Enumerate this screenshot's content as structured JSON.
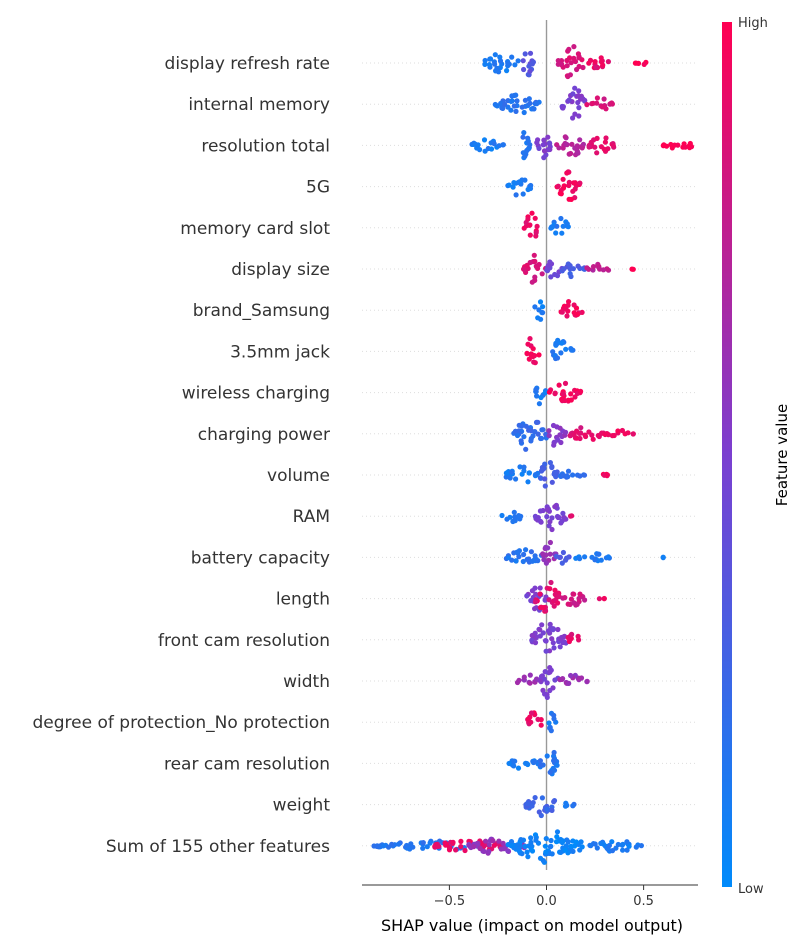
{
  "chart_data": {
    "type": "scatter",
    "subtype": "shap-beeswarm",
    "xlabel": "SHAP value (impact on model output)",
    "xlim": [
      -0.95,
      0.78
    ],
    "x_ticks": [
      {
        "value": -0.5,
        "label": "−0.5"
      },
      {
        "value": 0.0,
        "label": "0.0"
      },
      {
        "value": 0.5,
        "label": "0.5"
      }
    ],
    "zero_line": true,
    "colorbar": {
      "title": "Feature value",
      "high_label": "High",
      "low_label": "Low",
      "high_color": "#ff0052",
      "mid_color": "#7b3fd0",
      "low_color": "#008bfb"
    },
    "features": [
      {
        "name": "display refresh rate",
        "segments": [
          [
            -0.32,
            -0.14,
            0.1,
            0.6
          ],
          [
            -0.14,
            -0.06,
            0.35,
            0.9
          ],
          [
            0.06,
            0.2,
            0.85,
            1.0
          ],
          [
            0.2,
            0.32,
            0.9,
            0.4
          ],
          [
            0.45,
            0.52,
            1.0,
            0.15
          ]
        ]
      },
      {
        "name": "internal memory",
        "segments": [
          [
            -0.27,
            -0.02,
            0.15,
            0.6
          ],
          [
            0.08,
            0.2,
            0.5,
            1.0
          ],
          [
            0.2,
            0.34,
            0.85,
            0.4
          ]
        ]
      },
      {
        "name": "resolution total",
        "segments": [
          [
            -0.4,
            -0.22,
            0.1,
            0.35
          ],
          [
            -0.17,
            -0.08,
            0.15,
            0.8
          ],
          [
            -0.06,
            0.02,
            0.5,
            1.0
          ],
          [
            0.05,
            0.2,
            0.72,
            0.7
          ],
          [
            0.2,
            0.36,
            0.9,
            0.5
          ],
          [
            0.6,
            0.78,
            1.0,
            0.2
          ]
        ]
      },
      {
        "name": "5G",
        "segments": [
          [
            -0.2,
            -0.08,
            0.1,
            0.55
          ],
          [
            0.05,
            0.18,
            0.95,
            0.9
          ]
        ]
      },
      {
        "name": "memory card slot",
        "segments": [
          [
            -0.12,
            -0.04,
            0.92,
            0.9
          ],
          [
            0.02,
            0.12,
            0.12,
            0.65
          ]
        ]
      },
      {
        "name": "display size",
        "segments": [
          [
            -0.12,
            0.0,
            0.85,
            0.85
          ],
          [
            0.0,
            0.08,
            0.45,
            0.8
          ],
          [
            0.08,
            0.2,
            0.3,
            0.5
          ],
          [
            0.2,
            0.32,
            0.75,
            0.3
          ],
          [
            0.44,
            0.45,
            1.0,
            0.05
          ]
        ]
      },
      {
        "name": "brand_Samsung",
        "segments": [
          [
            -0.06,
            -0.02,
            0.1,
            1.0
          ],
          [
            0.07,
            0.19,
            0.95,
            0.6
          ]
        ]
      },
      {
        "name": "3.5mm jack",
        "segments": [
          [
            -0.12,
            -0.03,
            0.95,
            0.85
          ],
          [
            0.02,
            0.14,
            0.12,
            0.8
          ]
        ]
      },
      {
        "name": "wireless charging",
        "segments": [
          [
            -0.06,
            0.0,
            0.1,
            0.9
          ],
          [
            0.0,
            0.18,
            0.95,
            0.55
          ]
        ]
      },
      {
        "name": "charging power",
        "segments": [
          [
            -0.17,
            0.0,
            0.2,
            1.0
          ],
          [
            0.0,
            0.1,
            0.55,
            0.75
          ],
          [
            0.1,
            0.3,
            0.88,
            0.4
          ],
          [
            0.3,
            0.46,
            0.95,
            0.2
          ]
        ]
      },
      {
        "name": "volume",
        "segments": [
          [
            -0.22,
            -0.04,
            0.1,
            0.5
          ],
          [
            -0.04,
            0.06,
            0.3,
            1.0
          ],
          [
            0.06,
            0.2,
            0.2,
            0.3
          ],
          [
            0.25,
            0.32,
            0.95,
            0.1
          ]
        ]
      },
      {
        "name": "RAM",
        "segments": [
          [
            -0.23,
            -0.12,
            0.1,
            0.35
          ],
          [
            -0.06,
            0.1,
            0.5,
            0.9
          ],
          [
            0.1,
            0.13,
            0.9,
            0.1
          ]
        ]
      },
      {
        "name": "battery capacity",
        "segments": [
          [
            -0.21,
            -0.02,
            0.15,
            0.55
          ],
          [
            -0.02,
            0.05,
            0.6,
            1.0
          ],
          [
            0.05,
            0.12,
            0.3,
            0.4
          ],
          [
            0.15,
            0.33,
            0.1,
            0.25
          ],
          [
            0.6,
            0.61,
            0.05,
            0.05
          ]
        ]
      },
      {
        "name": "length",
        "segments": [
          [
            -0.11,
            0.0,
            0.5,
            0.8
          ],
          [
            -0.06,
            0.08,
            0.9,
            1.0
          ],
          [
            0.08,
            0.2,
            0.8,
            0.5
          ],
          [
            0.26,
            0.3,
            0.95,
            0.1
          ]
        ]
      },
      {
        "name": "front cam resolution",
        "segments": [
          [
            -0.09,
            0.1,
            0.5,
            1.0
          ],
          [
            0.1,
            0.18,
            0.9,
            0.35
          ]
        ]
      },
      {
        "name": "width",
        "segments": [
          [
            -0.15,
            -0.04,
            0.6,
            0.4
          ],
          [
            -0.04,
            0.06,
            0.5,
            1.0
          ],
          [
            0.06,
            0.22,
            0.6,
            0.35
          ]
        ]
      },
      {
        "name": "degree of protection_No protection",
        "segments": [
          [
            -0.1,
            -0.02,
            0.92,
            0.7
          ],
          [
            0.0,
            0.06,
            0.12,
            0.55
          ]
        ]
      },
      {
        "name": "rear cam resolution",
        "segments": [
          [
            -0.2,
            -0.04,
            0.1,
            0.35
          ],
          [
            -0.04,
            0.07,
            0.15,
            0.9
          ]
        ]
      },
      {
        "name": "weight",
        "segments": [
          [
            -0.11,
            0.06,
            0.25,
            0.75
          ],
          [
            0.08,
            0.15,
            0.15,
            0.15
          ]
        ]
      },
      {
        "name": "Sum of 155 other features",
        "segments": [
          [
            -0.9,
            -0.3,
            0.15,
            0.3
          ],
          [
            -0.6,
            -0.2,
            0.9,
            0.35
          ],
          [
            -0.4,
            -0.1,
            0.6,
            0.5
          ],
          [
            -0.2,
            0.2,
            0.05,
            1.0
          ],
          [
            0.2,
            0.5,
            0.1,
            0.35
          ]
        ]
      }
    ]
  }
}
